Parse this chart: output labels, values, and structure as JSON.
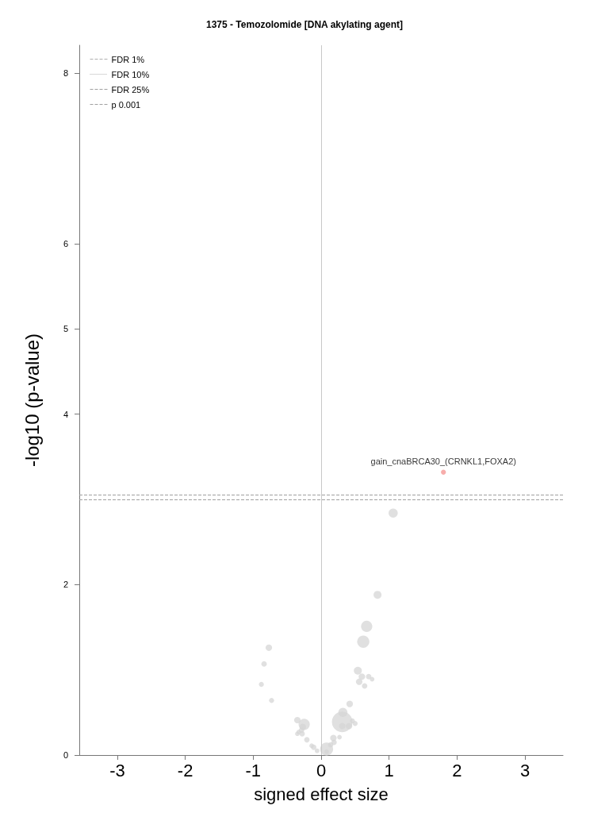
{
  "chart_data": {
    "type": "bubble",
    "title": "1375 - Temozolomide [DNA akylating agent]",
    "xlabel": "signed effect size",
    "ylabel": "-log10 (p-value)",
    "xlim": [
      -3.56,
      3.56
    ],
    "xticks": [
      -3,
      -2,
      -1,
      0,
      1,
      2,
      3
    ],
    "ylim": [
      0,
      8.33
    ],
    "yticks": [
      0,
      2,
      4,
      5,
      6,
      8
    ],
    "grid": false,
    "legend": "top left",
    "marker": "circle",
    "series": [
      {
        "color": "#d6d6d6",
        "x": [
          -0.77,
          -0.84,
          -0.88,
          -0.73,
          -0.35,
          -0.25,
          -0.27,
          -0.29,
          -0.33,
          -0.28,
          -0.35,
          -0.21,
          -0.14,
          -0.11,
          -0.06,
          0.08,
          0.08,
          0.14,
          0.18,
          0.19,
          0.27,
          0.31,
          0.32,
          0.31,
          0.41,
          0.46,
          0.5,
          0.42,
          0.54,
          0.6,
          0.56,
          0.64,
          0.7,
          0.75,
          0.62,
          0.67,
          1.06,
          0.83
        ],
        "values": [
          1.26,
          1.07,
          0.83,
          0.64,
          0.41,
          0.36,
          0.33,
          0.29,
          0.27,
          0.25,
          0.25,
          0.18,
          0.11,
          0.09,
          0.05,
          0.07,
          0.04,
          0.12,
          0.2,
          0.15,
          0.21,
          0.39,
          0.5,
          0.34,
          0.34,
          0.4,
          0.37,
          0.6,
          0.99,
          0.92,
          0.86,
          0.81,
          0.92,
          0.89,
          1.33,
          1.51,
          2.84,
          1.88
        ],
        "sizes": [
          0.1,
          0.07,
          0.06,
          0.06,
          0.1,
          0.3,
          0.1,
          0.07,
          0.05,
          0.07,
          0.05,
          0.07,
          0.05,
          0.07,
          0.05,
          0.4,
          0.05,
          0.07,
          0.1,
          0.07,
          0.05,
          1,
          0.2,
          0.1,
          0.1,
          0.06,
          0.06,
          0.1,
          0.15,
          0.1,
          0.1,
          0.07,
          0.07,
          0.05,
          0.35,
          0.3,
          0.2,
          0.15
        ]
      },
      {
        "color": "#f4928f",
        "x": [
          1.8
        ],
        "values": [
          3.32
        ],
        "sizes": [
          0.06
        ]
      }
    ],
    "ref_lines": [
      {
        "axis": "x",
        "value": 0,
        "color": "#c8c8c8",
        "line_style": "solid"
      },
      {
        "axis": "y",
        "value": null,
        "label": "FDR 1%",
        "color": "#b0b0b0",
        "line_style": "dashed"
      },
      {
        "axis": "y",
        "value": null,
        "label": "FDR 10%",
        "color": "#b0b0b0",
        "line_style": "dotted"
      },
      {
        "axis": "y",
        "value": 3.05,
        "label": "FDR 25%",
        "color": "#a0a0a0",
        "line_style": "dashed"
      },
      {
        "axis": "y",
        "value": 3.0,
        "label": "p 0.001",
        "color": "#a0a0a0",
        "line_style": "dashed"
      }
    ],
    "annotations": [
      {
        "text": "gain_cnaBRCA30_(CRNKL1,FOXA2)",
        "x": 1.8,
        "y": 3.32
      }
    ]
  }
}
